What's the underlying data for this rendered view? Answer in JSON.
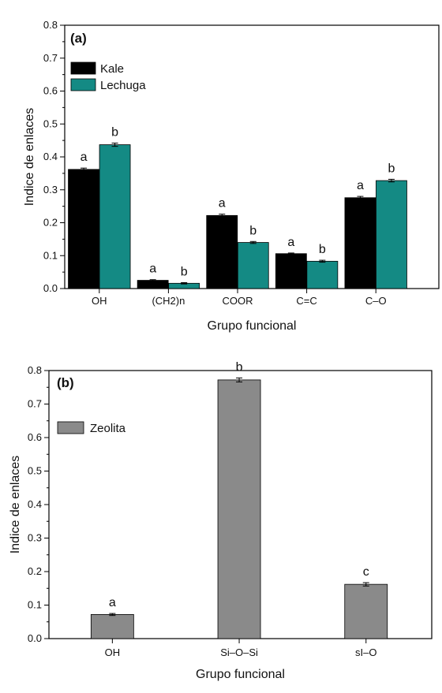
{
  "chart_data": [
    {
      "type": "bar",
      "panel_label": "(a)",
      "categories": [
        "OH",
        "(CH2)n",
        "COOR",
        "C=C",
        "C–O"
      ],
      "series": [
        {
          "name": "Kale",
          "values": [
            0.362,
            0.025,
            0.222,
            0.106,
            0.276
          ],
          "errors": [
            0.004,
            0.002,
            0.004,
            0.002,
            0.004
          ],
          "letters": [
            "a",
            "a",
            "a",
            "a",
            "a"
          ],
          "color": "#000000"
        },
        {
          "name": "Lechuga",
          "values": [
            0.437,
            0.016,
            0.14,
            0.083,
            0.328
          ],
          "errors": [
            0.005,
            0.002,
            0.003,
            0.003,
            0.004
          ],
          "letters": [
            "b",
            "b",
            "b",
            "b",
            "b"
          ],
          "color": "#148a84"
        }
      ],
      "xlabel": "Grupo funcional",
      "ylabel": "Indice de enlaces",
      "ylim": [
        0,
        0.8
      ],
      "yticks": [
        "0.0",
        "0.1",
        "0.2",
        "0.3",
        "0.4",
        "0.5",
        "0.6",
        "0.7",
        "0.8"
      ],
      "legend_position": "top-left",
      "grid": false
    },
    {
      "type": "bar",
      "panel_label": "(b)",
      "categories": [
        "OH",
        "Si–O–Si",
        "sI–O"
      ],
      "series": [
        {
          "name": "Zeolita",
          "values": [
            0.072,
            0.772,
            0.162
          ],
          "errors": [
            0.003,
            0.006,
            0.005
          ],
          "letters": [
            "a",
            "b",
            "c"
          ],
          "color": "#8a8a8a"
        }
      ],
      "xlabel": "Grupo funcional",
      "ylabel": "Indice de enlaces",
      "ylim": [
        0,
        0.8
      ],
      "yticks": [
        "0.0",
        "0.1",
        "0.2",
        "0.3",
        "0.4",
        "0.5",
        "0.6",
        "0.7",
        "0.8"
      ],
      "legend_position": "top-left",
      "grid": false
    }
  ]
}
